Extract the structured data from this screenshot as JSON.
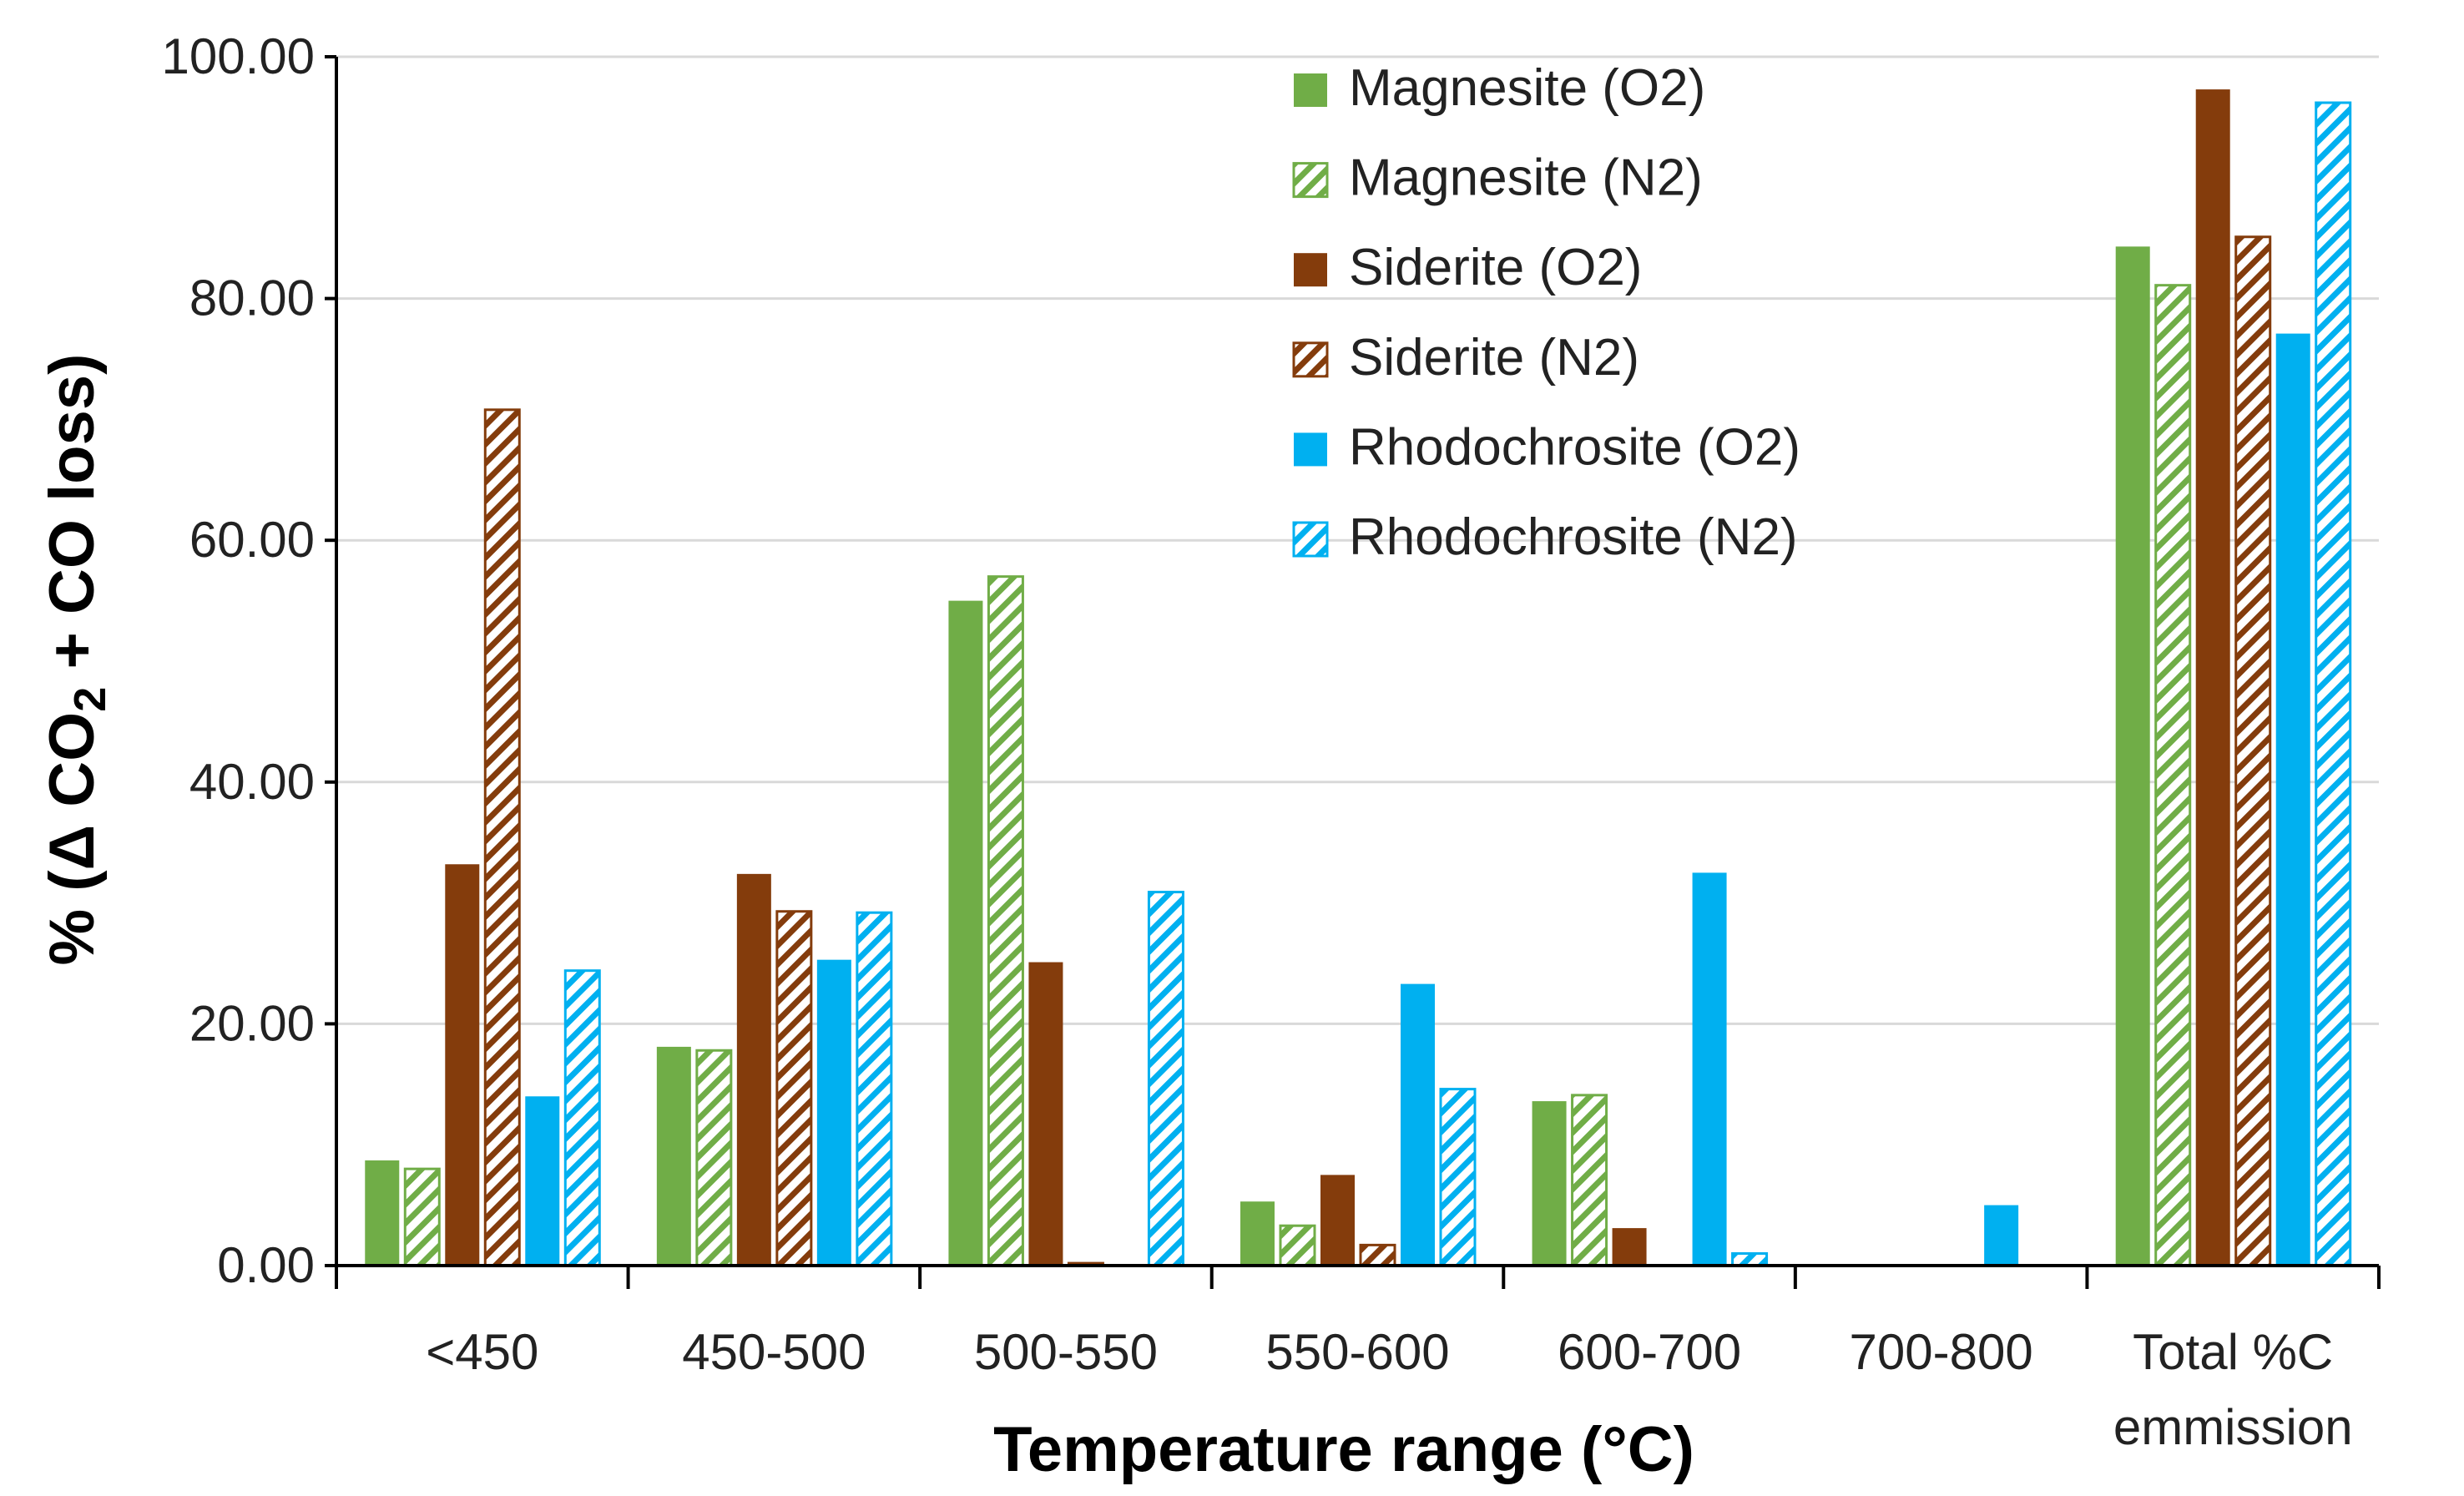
{
  "chart_data": {
    "type": "bar",
    "title": "",
    "xlabel": "Temperature range (°C)",
    "ylabel": "% (Δ CO2 + CO loss)",
    "ylabel_parts": {
      "prefix": "% (Δ CO",
      "subscript": "2",
      "suffix": " + CO loss)"
    },
    "ylim": [
      0,
      100
    ],
    "yticks": [
      "0.00",
      "20.00",
      "40.00",
      "60.00",
      "80.00",
      "100.00"
    ],
    "categories": [
      "<450",
      "450-500",
      "500-550",
      "550-600",
      "600-700",
      "700-800",
      [
        "Total %C",
        "emmission"
      ]
    ],
    "grid": true,
    "legend_position": "top-right",
    "series": [
      {
        "name": "Magnesite (O2)",
        "color": "#70ad47",
        "pattern": "solid",
        "values": [
          8.7,
          18.1,
          55.0,
          5.3,
          13.6,
          0,
          84.3
        ]
      },
      {
        "name": "Magnesite (N2)",
        "color": "#70ad47",
        "pattern": "hatch",
        "values": [
          8.0,
          17.8,
          57.0,
          3.3,
          14.1,
          0,
          81.1
        ]
      },
      {
        "name": "Siderite (O2)",
        "color": "#843c0c",
        "pattern": "solid",
        "values": [
          33.2,
          32.4,
          25.1,
          7.5,
          3.1,
          0,
          97.3
        ]
      },
      {
        "name": "Siderite (N2)",
        "color": "#843c0c",
        "pattern": "hatch",
        "values": [
          70.8,
          29.3,
          0.2,
          1.7,
          0,
          0,
          85.1
        ]
      },
      {
        "name": "Rhodochrosite (O2)",
        "color": "#00b0f0",
        "pattern": "solid",
        "values": [
          14.0,
          25.3,
          0,
          23.3,
          32.5,
          5.0,
          77.1
        ]
      },
      {
        "name": "Rhodochrosite (N2)",
        "color": "#00b0f0",
        "pattern": "hatch",
        "values": [
          24.4,
          29.2,
          30.9,
          14.6,
          1.0,
          0,
          96.2
        ]
      }
    ]
  }
}
